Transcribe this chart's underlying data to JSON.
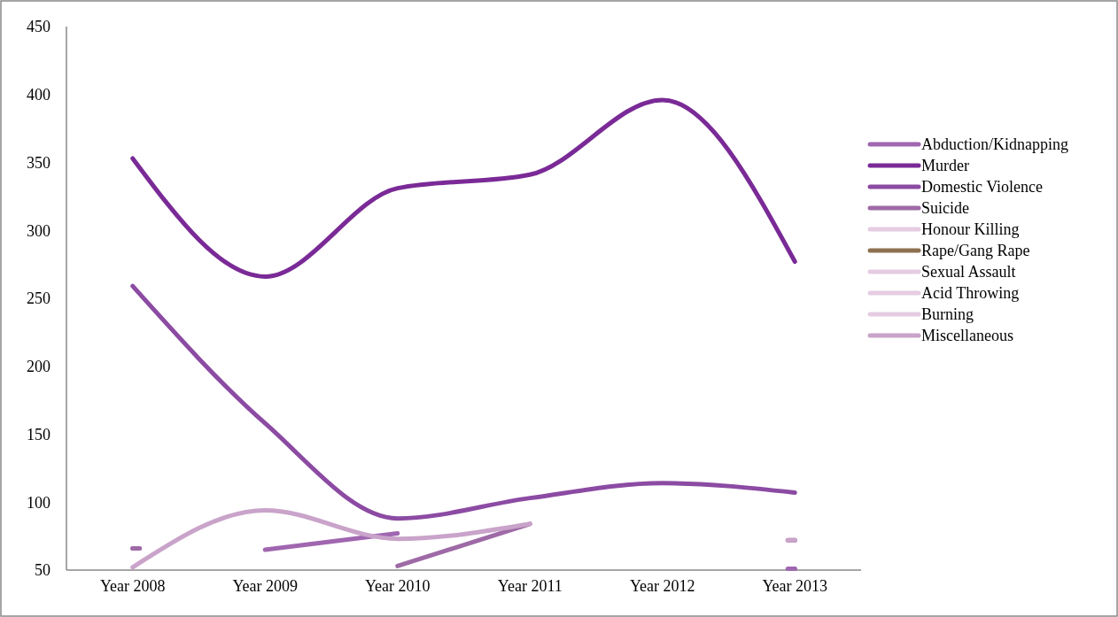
{
  "chart_data": {
    "type": "line",
    "categories": [
      "Year 2008",
      "Year 2009",
      "Year 2010",
      "Year 2011",
      "Year 2012",
      "Year 2013"
    ],
    "series": [
      {
        "name": "Abduction/Kidnapping",
        "color": "#a066b0",
        "values": [
          null,
          65,
          77,
          null,
          null,
          51
        ]
      },
      {
        "name": "Murder",
        "color": "#7a2a96",
        "values": [
          353,
          266,
          331,
          341,
          396,
          277
        ]
      },
      {
        "name": "Domestic Violence",
        "color": "#8c4ba3",
        "values": [
          259,
          158,
          88,
          103,
          114,
          107
        ]
      },
      {
        "name": "Suicide",
        "color": "#9e6aa6",
        "values": [
          66,
          null,
          53,
          84,
          null,
          72
        ]
      },
      {
        "name": "Honour Killing",
        "color": "#e6cce2",
        "values": [
          null,
          null,
          null,
          null,
          null,
          null
        ]
      },
      {
        "name": "Rape/Gang Rape",
        "color": "#8e7050",
        "values": [
          null,
          null,
          null,
          null,
          null,
          null
        ]
      },
      {
        "name": "Sexual Assault",
        "color": "#e6cce2",
        "values": [
          null,
          null,
          null,
          null,
          null,
          null
        ]
      },
      {
        "name": "Acid Throwing",
        "color": "#e6cce2",
        "values": [
          null,
          null,
          null,
          null,
          null,
          null
        ]
      },
      {
        "name": "Burning",
        "color": "#e6cce2",
        "values": [
          null,
          null,
          null,
          null,
          null,
          null
        ]
      },
      {
        "name": "Miscellaneous",
        "color": "#c9a3c9",
        "values": [
          52,
          94,
          73,
          84,
          null,
          72
        ]
      }
    ],
    "ylim": [
      50,
      450
    ],
    "yticks": [
      50,
      100,
      150,
      200,
      250,
      300,
      350,
      400,
      450
    ],
    "grid": false,
    "legend": "right",
    "marker": "none",
    "line_style": "solid"
  }
}
